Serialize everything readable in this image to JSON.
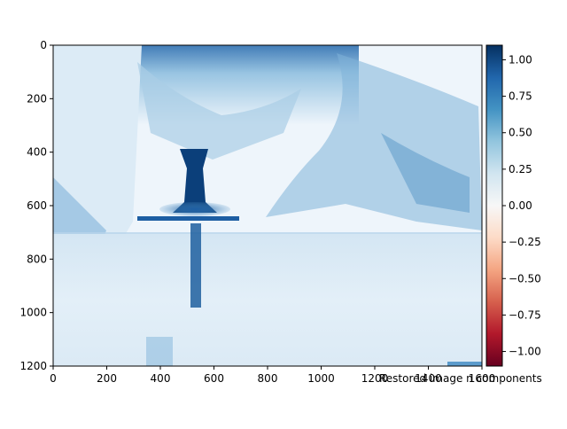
{
  "chart_data": {
    "type": "heatmap",
    "title": "",
    "xlabel": "",
    "ylabel": "",
    "xlim": [
      0,
      1600
    ],
    "ylim": [
      1200,
      0
    ],
    "x_ticks": [
      "0",
      "200",
      "400",
      "600",
      "800",
      "1000",
      "1200",
      "1400",
      "1600"
    ],
    "y_ticks": [
      "0",
      "200",
      "400",
      "600",
      "800",
      "1000",
      "1200"
    ],
    "colorbar": {
      "colormap": "RdBu",
      "range": [
        -1.1,
        1.1
      ],
      "ticks": [
        "1.00",
        "0.75",
        "0.50",
        "0.25",
        "0.00",
        "−0.25",
        "−0.50",
        "−0.75",
        "−1.00"
      ],
      "tick_values": [
        1.0,
        0.75,
        0.5,
        0.25,
        0.0,
        -0.25,
        -0.5,
        -0.75,
        -1.0
      ],
      "label": "Restored image n components"
    },
    "image_description_colors": {
      "low": "#67001f",
      "mid": "#f7f7f7",
      "high": "#053061"
    }
  }
}
